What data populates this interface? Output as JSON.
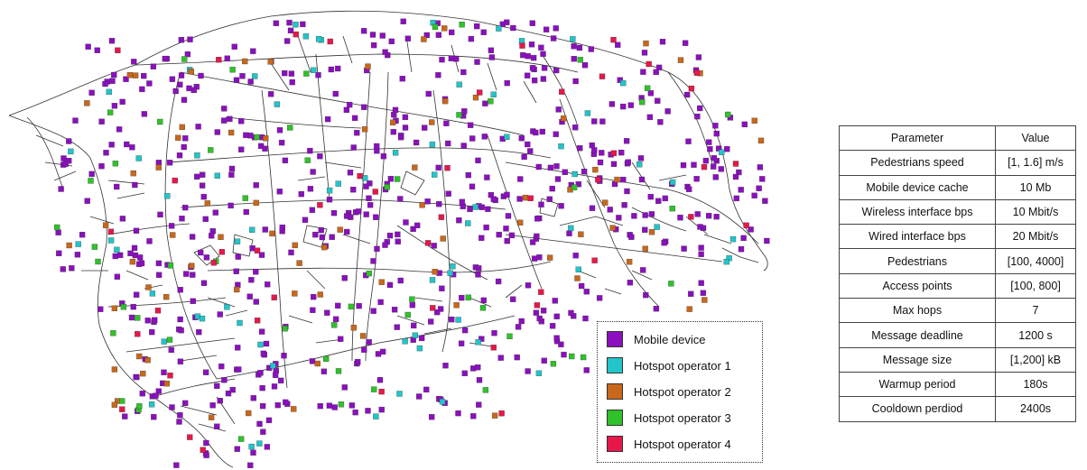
{
  "legend": {
    "items": [
      {
        "label": "Mobile device",
        "color": "#8b0fbf"
      },
      {
        "label": "Hotspot operator 1",
        "color": "#22c5c9"
      },
      {
        "label": "Hotspot operator 2",
        "color": "#c9671a"
      },
      {
        "label": "Hotspot operator 3",
        "color": "#2fc22a"
      },
      {
        "label": "Hotspot operator 4",
        "color": "#e8174a"
      }
    ]
  },
  "table": {
    "headers": [
      "Parameter",
      "Value"
    ],
    "rows": [
      [
        "Pedestrians speed",
        "[1, 1.6] m/s"
      ],
      [
        "Mobile device cache",
        "10 Mb"
      ],
      [
        "Wireless interface bps",
        "10 Mbit/s"
      ],
      [
        "Wired interface bps",
        "20 Mbit/s"
      ],
      [
        "Pedestrians",
        "[100, 4000]"
      ],
      [
        "Access points",
        "[100, 800]"
      ],
      [
        "Max hops",
        "7"
      ],
      [
        "Message deadline",
        "1200 s"
      ],
      [
        "Message size",
        "[1,200] kB"
      ],
      [
        "Warmup period",
        "180s"
      ],
      [
        "Cooldown perdiod",
        "2400s"
      ]
    ]
  }
}
